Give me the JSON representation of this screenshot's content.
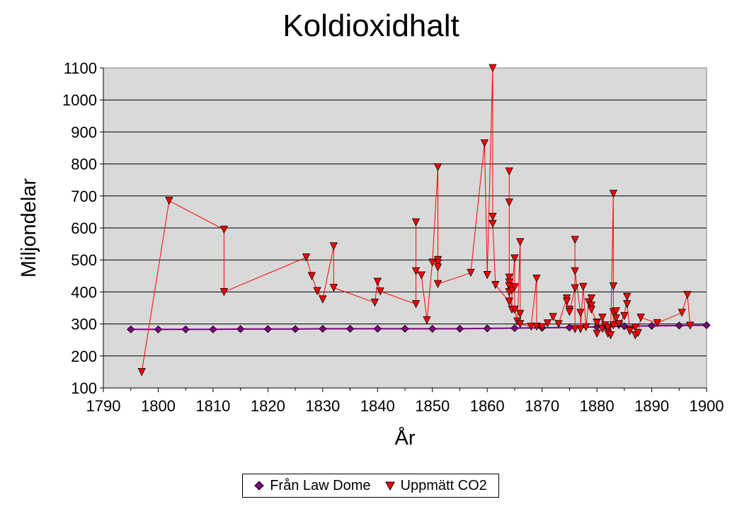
{
  "chart_data": {
    "type": "line",
    "title": "Koldioxidhalt",
    "xlabel": "År",
    "ylabel": "Miljondelar",
    "xlim": [
      1790,
      1900
    ],
    "ylim": [
      100,
      1100
    ],
    "xticks": [
      1790,
      1800,
      1810,
      1820,
      1830,
      1840,
      1850,
      1860,
      1870,
      1880,
      1890,
      1900
    ],
    "yticks": [
      100,
      200,
      300,
      400,
      500,
      600,
      700,
      800,
      900,
      1000,
      1100
    ],
    "grid": "horizontal",
    "legend_position": "bottom",
    "series": [
      {
        "name": "Från Law Dome",
        "color": "#800080",
        "marker": "diamond",
        "x": [
          1795,
          1800,
          1805,
          1810,
          1815,
          1820,
          1825,
          1830,
          1835,
          1840,
          1845,
          1850,
          1855,
          1860,
          1865,
          1870,
          1875,
          1880,
          1885,
          1890,
          1895,
          1900
        ],
        "y": [
          283,
          283,
          283,
          283,
          284,
          284,
          284,
          285,
          285,
          285,
          285,
          285,
          285,
          286,
          287,
          288,
          289,
          291,
          293,
          294,
          295,
          296
        ]
      },
      {
        "name": "Uppmätt CO2",
        "color": "#ff0000",
        "line_color": "#ff0000",
        "marker": "triangle-down",
        "x": [
          1797,
          1802,
          1812,
          1812,
          1827,
          1828,
          1829,
          1830,
          1832,
          1832,
          1839.5,
          1840,
          1840.5,
          1847,
          1847,
          1847,
          1848,
          1849,
          1850,
          1851,
          1851,
          1851,
          1851,
          1851,
          1857,
          1859.5,
          1860,
          1861,
          1861,
          1861,
          1861.5,
          1864,
          1864,
          1864,
          1864,
          1864,
          1864,
          1864,
          1864,
          1864.5,
          1864.5,
          1865,
          1865,
          1865,
          1865.5,
          1866,
          1866,
          1866,
          1868,
          1869,
          1869,
          1870,
          1871,
          1872,
          1873,
          1874.5,
          1874.5,
          1875,
          1875,
          1876,
          1876,
          1876,
          1876,
          1877,
          1877,
          1877.5,
          1878,
          1878.5,
          1879,
          1879,
          1879,
          1880,
          1880,
          1880,
          1881,
          1881,
          1881.5,
          1882,
          1882,
          1882,
          1882.5,
          1883,
          1883,
          1883,
          1883,
          1883.5,
          1883.5,
          1884,
          1884,
          1885,
          1885.5,
          1885.5,
          1886,
          1886,
          1887,
          1887,
          1887.5,
          1888,
          1891,
          1895.5,
          1896.5,
          1897
        ],
        "y": [
          150,
          685,
          595,
          400,
          508,
          450,
          403,
          377,
          543,
          413,
          367,
          432,
          402,
          362,
          618,
          465,
          452,
          312,
          492,
          790,
          500,
          490,
          477,
          425,
          460,
          865,
          453,
          1100,
          635,
          613,
          422,
          370,
          370,
          777,
          680,
          445,
          430,
          418,
          400,
          345,
          405,
          505,
          415,
          345,
          308,
          556,
          332,
          300,
          292,
          442,
          292,
          290,
          302,
          322,
          300,
          380,
          370,
          345,
          338,
          412,
          284,
          563,
          465,
          335,
          284,
          416,
          290,
          368,
          358,
          380,
          345,
          305,
          270,
          303,
          285,
          320,
          296,
          283,
          288,
          270,
          265,
          707,
          418,
          337,
          296,
          340,
          318,
          296,
          300,
          325,
          385,
          362,
          282,
          278,
          289,
          265,
          272,
          320,
          303,
          335,
          391,
          295
        ]
      }
    ]
  }
}
